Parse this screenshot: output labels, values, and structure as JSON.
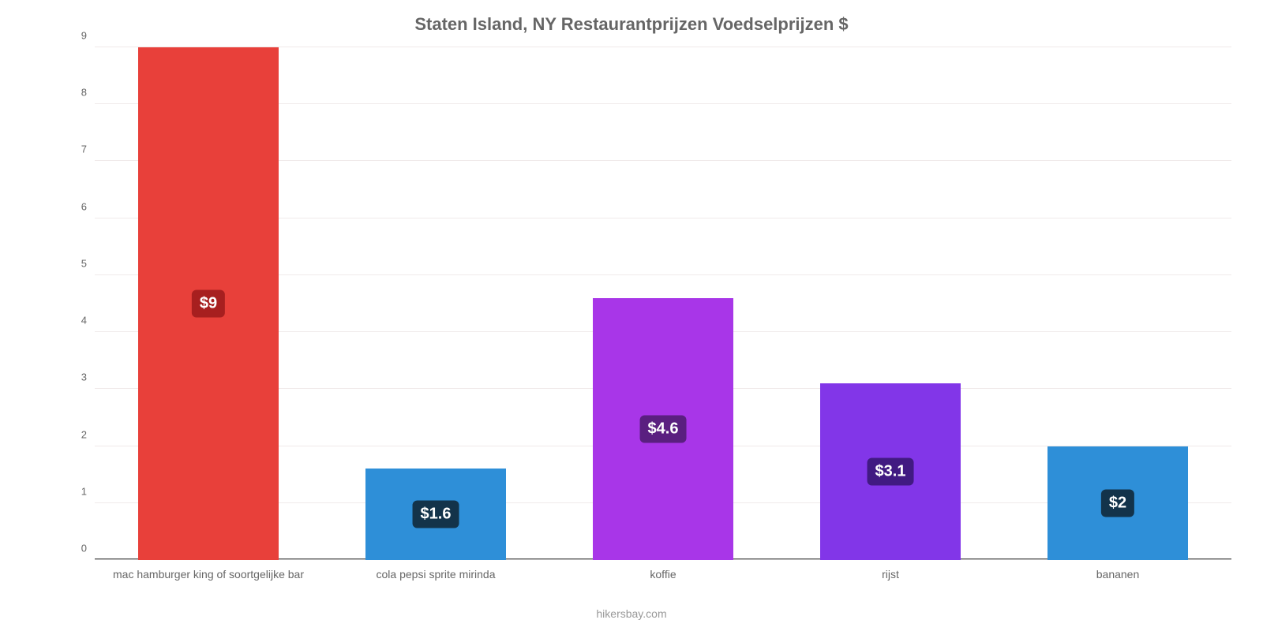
{
  "chart": {
    "type": "bar",
    "title": "Staten Island, NY Restaurantprijzen Voedselprijzen $",
    "title_fontsize": 22,
    "title_color": "#666666",
    "credit": "hikersbay.com",
    "credit_color": "#999999",
    "background_color": "#ffffff",
    "x_axis_color": "#555555",
    "grid_color": "#f0eaea",
    "grid_color_zero": "#bfbfbf",
    "ylim": [
      0,
      9
    ],
    "ytick_step": 1,
    "yticks": [
      0,
      1,
      2,
      3,
      4,
      5,
      6,
      7,
      8,
      9
    ],
    "tick_label_color": "#666666",
    "tick_fontsize": 13,
    "xlabel_fontsize": 14,
    "bar_width_ratio": 0.62,
    "value_badge_bg": "#13334a",
    "value_badge_color": "#ffffff",
    "value_badge_fontsize": 20,
    "value_badge_radius": 6,
    "categories": [
      "mac hamburger king of soortgelijke bar",
      "cola pepsi sprite mirinda",
      "koffie",
      "rijst",
      "bananen"
    ],
    "values": [
      9,
      1.6,
      4.6,
      3.1,
      2
    ],
    "value_labels": [
      "$9",
      "$1.6",
      "$4.6",
      "$3.1",
      "$2"
    ],
    "bar_colors": [
      "#e8403a",
      "#2e8fd8",
      "#a836e8",
      "#8236e8",
      "#2e8fd8"
    ],
    "badge_colors": [
      "#a71f1f",
      "#13334a",
      "#5a1f80",
      "#411a82",
      "#13334a"
    ]
  }
}
